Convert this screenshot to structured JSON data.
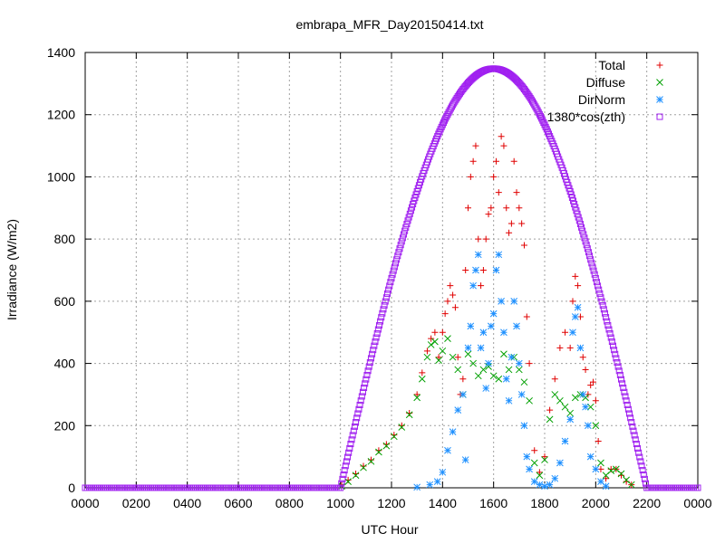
{
  "chart_data": {
    "type": "scatter",
    "title": "embrapa_MFR_Day20150414.txt",
    "xlabel": "UTC Hour",
    "ylabel": "Irradiance (W/m2)",
    "xlim": [
      0,
      2400
    ],
    "ylim": [
      0,
      1400
    ],
    "grid": true,
    "legend_placement": "top-right",
    "x_ticks": [
      "0000",
      "0200",
      "0400",
      "0600",
      "0800",
      "1000",
      "1200",
      "1400",
      "1600",
      "1800",
      "2000",
      "2200",
      "0000"
    ],
    "y_ticks": [
      "0",
      "200",
      "400",
      "600",
      "800",
      "1000",
      "1200",
      "1400"
    ],
    "series": [
      {
        "name": "Total",
        "marker": "plus",
        "color": "#e00000",
        "points": [
          [
            1005,
            10
          ],
          [
            1030,
            25
          ],
          [
            1060,
            45
          ],
          [
            1090,
            70
          ],
          [
            1120,
            90
          ],
          [
            1150,
            120
          ],
          [
            1180,
            140
          ],
          [
            1210,
            170
          ],
          [
            1240,
            200
          ],
          [
            1270,
            240
          ],
          [
            1300,
            300
          ],
          [
            1320,
            370
          ],
          [
            1340,
            440
          ],
          [
            1355,
            480
          ],
          [
            1370,
            500
          ],
          [
            1385,
            420
          ],
          [
            1400,
            500
          ],
          [
            1410,
            560
          ],
          [
            1420,
            600
          ],
          [
            1430,
            650
          ],
          [
            1440,
            620
          ],
          [
            1450,
            580
          ],
          [
            1460,
            420
          ],
          [
            1470,
            300
          ],
          [
            1480,
            350
          ],
          [
            1490,
            700
          ],
          [
            1500,
            900
          ],
          [
            1510,
            1000
          ],
          [
            1520,
            1050
          ],
          [
            1530,
            1100
          ],
          [
            1540,
            800
          ],
          [
            1550,
            650
          ],
          [
            1560,
            700
          ],
          [
            1570,
            800
          ],
          [
            1580,
            880
          ],
          [
            1590,
            900
          ],
          [
            1600,
            1000
          ],
          [
            1610,
            1050
          ],
          [
            1620,
            950
          ],
          [
            1630,
            1130
          ],
          [
            1640,
            1100
          ],
          [
            1650,
            900
          ],
          [
            1660,
            820
          ],
          [
            1670,
            850
          ],
          [
            1680,
            1050
          ],
          [
            1690,
            950
          ],
          [
            1700,
            900
          ],
          [
            1710,
            850
          ],
          [
            1720,
            780
          ],
          [
            1730,
            550
          ],
          [
            1740,
            400
          ],
          [
            1760,
            120
          ],
          [
            1780,
            50
          ],
          [
            1800,
            100
          ],
          [
            1820,
            250
          ],
          [
            1840,
            350
          ],
          [
            1860,
            450
          ],
          [
            1880,
            500
          ],
          [
            1900,
            450
          ],
          [
            1910,
            600
          ],
          [
            1920,
            680
          ],
          [
            1930,
            650
          ],
          [
            1940,
            550
          ],
          [
            1950,
            420
          ],
          [
            1960,
            380
          ],
          [
            1970,
            300
          ],
          [
            1980,
            330
          ],
          [
            1990,
            340
          ],
          [
            2000,
            280
          ],
          [
            2010,
            150
          ],
          [
            2020,
            60
          ],
          [
            2040,
            30
          ],
          [
            2060,
            60
          ],
          [
            2080,
            60
          ],
          [
            2100,
            40
          ],
          [
            2120,
            20
          ],
          [
            2140,
            10
          ]
        ]
      },
      {
        "name": "Diffuse",
        "marker": "cross",
        "color": "#00a000",
        "points": [
          [
            1005,
            5
          ],
          [
            1030,
            20
          ],
          [
            1060,
            40
          ],
          [
            1090,
            65
          ],
          [
            1120,
            85
          ],
          [
            1150,
            115
          ],
          [
            1180,
            135
          ],
          [
            1210,
            165
          ],
          [
            1240,
            195
          ],
          [
            1270,
            235
          ],
          [
            1300,
            290
          ],
          [
            1320,
            350
          ],
          [
            1340,
            420
          ],
          [
            1355,
            460
          ],
          [
            1370,
            470
          ],
          [
            1385,
            410
          ],
          [
            1400,
            440
          ],
          [
            1420,
            480
          ],
          [
            1440,
            420
          ],
          [
            1460,
            380
          ],
          [
            1480,
            300
          ],
          [
            1500,
            430
          ],
          [
            1520,
            400
          ],
          [
            1540,
            360
          ],
          [
            1560,
            380
          ],
          [
            1580,
            390
          ],
          [
            1600,
            360
          ],
          [
            1620,
            350
          ],
          [
            1640,
            430
          ],
          [
            1660,
            380
          ],
          [
            1680,
            420
          ],
          [
            1700,
            380
          ],
          [
            1720,
            340
          ],
          [
            1740,
            280
          ],
          [
            1760,
            80
          ],
          [
            1780,
            40
          ],
          [
            1800,
            90
          ],
          [
            1820,
            220
          ],
          [
            1840,
            300
          ],
          [
            1860,
            280
          ],
          [
            1880,
            260
          ],
          [
            1900,
            240
          ],
          [
            1920,
            290
          ],
          [
            1940,
            300
          ],
          [
            1960,
            290
          ],
          [
            1980,
            260
          ],
          [
            2000,
            200
          ],
          [
            2020,
            80
          ],
          [
            2040,
            40
          ],
          [
            2060,
            55
          ],
          [
            2080,
            60
          ],
          [
            2100,
            45
          ],
          [
            2120,
            25
          ],
          [
            2140,
            10
          ]
        ]
      },
      {
        "name": "DirNorm",
        "marker": "star",
        "color": "#1e90ff",
        "points": [
          [
            1300,
            2
          ],
          [
            1350,
            10
          ],
          [
            1380,
            20
          ],
          [
            1400,
            50
          ],
          [
            1420,
            120
          ],
          [
            1440,
            180
          ],
          [
            1460,
            250
          ],
          [
            1480,
            300
          ],
          [
            1490,
            90
          ],
          [
            1500,
            450
          ],
          [
            1510,
            520
          ],
          [
            1520,
            650
          ],
          [
            1530,
            700
          ],
          [
            1540,
            750
          ],
          [
            1550,
            450
          ],
          [
            1560,
            500
          ],
          [
            1570,
            320
          ],
          [
            1580,
            400
          ],
          [
            1590,
            520
          ],
          [
            1600,
            560
          ],
          [
            1610,
            700
          ],
          [
            1620,
            750
          ],
          [
            1630,
            600
          ],
          [
            1640,
            500
          ],
          [
            1650,
            350
          ],
          [
            1660,
            280
          ],
          [
            1670,
            420
          ],
          [
            1680,
            600
          ],
          [
            1690,
            520
          ],
          [
            1700,
            400
          ],
          [
            1710,
            300
          ],
          [
            1720,
            200
          ],
          [
            1730,
            100
          ],
          [
            1740,
            60
          ],
          [
            1760,
            20
          ],
          [
            1780,
            10
          ],
          [
            1800,
            5
          ],
          [
            1820,
            10
          ],
          [
            1840,
            30
          ],
          [
            1860,
            80
          ],
          [
            1880,
            150
          ],
          [
            1900,
            220
          ],
          [
            1910,
            500
          ],
          [
            1920,
            550
          ],
          [
            1930,
            580
          ],
          [
            1940,
            450
          ],
          [
            1950,
            300
          ],
          [
            1960,
            260
          ],
          [
            1970,
            200
          ],
          [
            1980,
            100
          ],
          [
            2000,
            60
          ],
          [
            2020,
            20
          ],
          [
            2040,
            5
          ]
        ]
      },
      {
        "name": "1380*cos(zth)",
        "marker": "square",
        "color": "#a020f0",
        "function": "sunrise 1000, sunset 2200, peak 1348 at 1600",
        "points": [
          [
            1000,
            0
          ],
          [
            1100,
            375
          ],
          [
            1200,
            730
          ],
          [
            1300,
            1010
          ],
          [
            1400,
            1205
          ],
          [
            1500,
            1317
          ],
          [
            1600,
            1348
          ],
          [
            1700,
            1317
          ],
          [
            1800,
            1205
          ],
          [
            1900,
            1010
          ],
          [
            2000,
            730
          ],
          [
            2100,
            375
          ],
          [
            2200,
            0
          ]
        ]
      }
    ]
  }
}
